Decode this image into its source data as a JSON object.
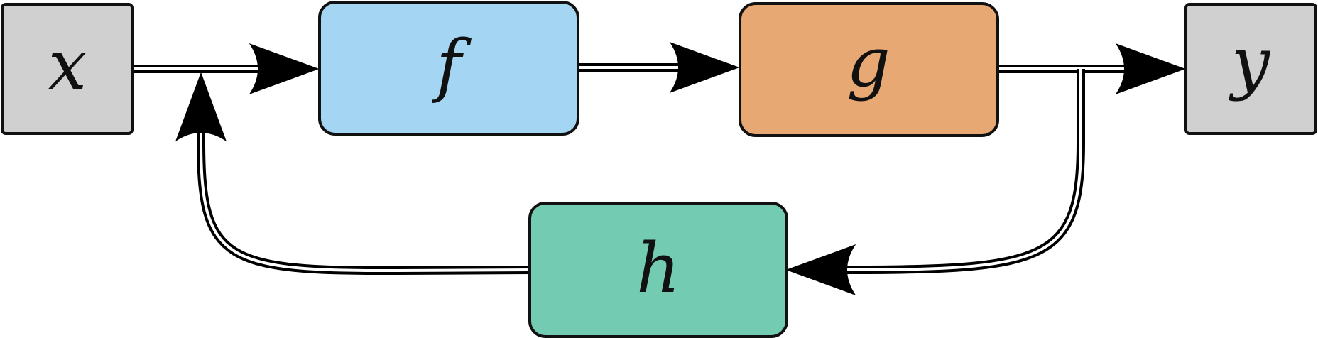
{
  "diagram": {
    "nodes": {
      "x": {
        "label": "x",
        "color": "#d0d0d0"
      },
      "f": {
        "label": "f",
        "color": "#a4d5f3"
      },
      "g": {
        "label": "g",
        "color": "#e8a873"
      },
      "y": {
        "label": "y",
        "color": "#d0d0d0"
      },
      "h": {
        "label": "h",
        "color": "#73cbb2"
      }
    },
    "edges": [
      {
        "from": "x",
        "to": "f"
      },
      {
        "from": "f",
        "to": "g"
      },
      {
        "from": "g",
        "to": "y"
      },
      {
        "from": "g",
        "to": "h"
      },
      {
        "from": "h",
        "to": "f"
      }
    ]
  }
}
